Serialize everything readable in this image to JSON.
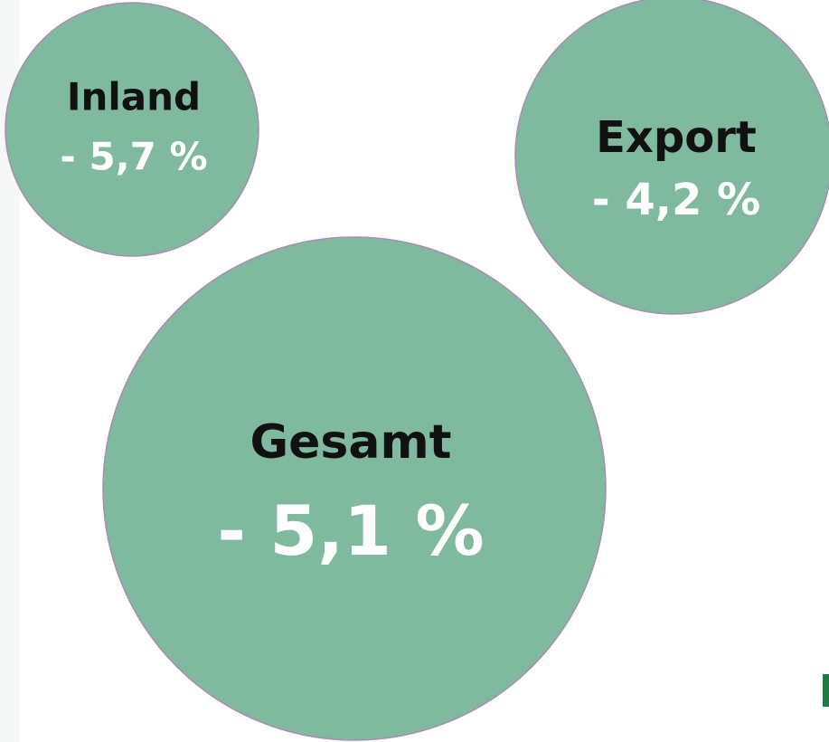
{
  "nodes": [
    {
      "label": "Inland",
      "value": "- 5,7 %"
    },
    {
      "label": "Export",
      "value": "- 4,2 %"
    },
    {
      "label": "Gesamt",
      "value": "- 5,1 %"
    }
  ]
}
